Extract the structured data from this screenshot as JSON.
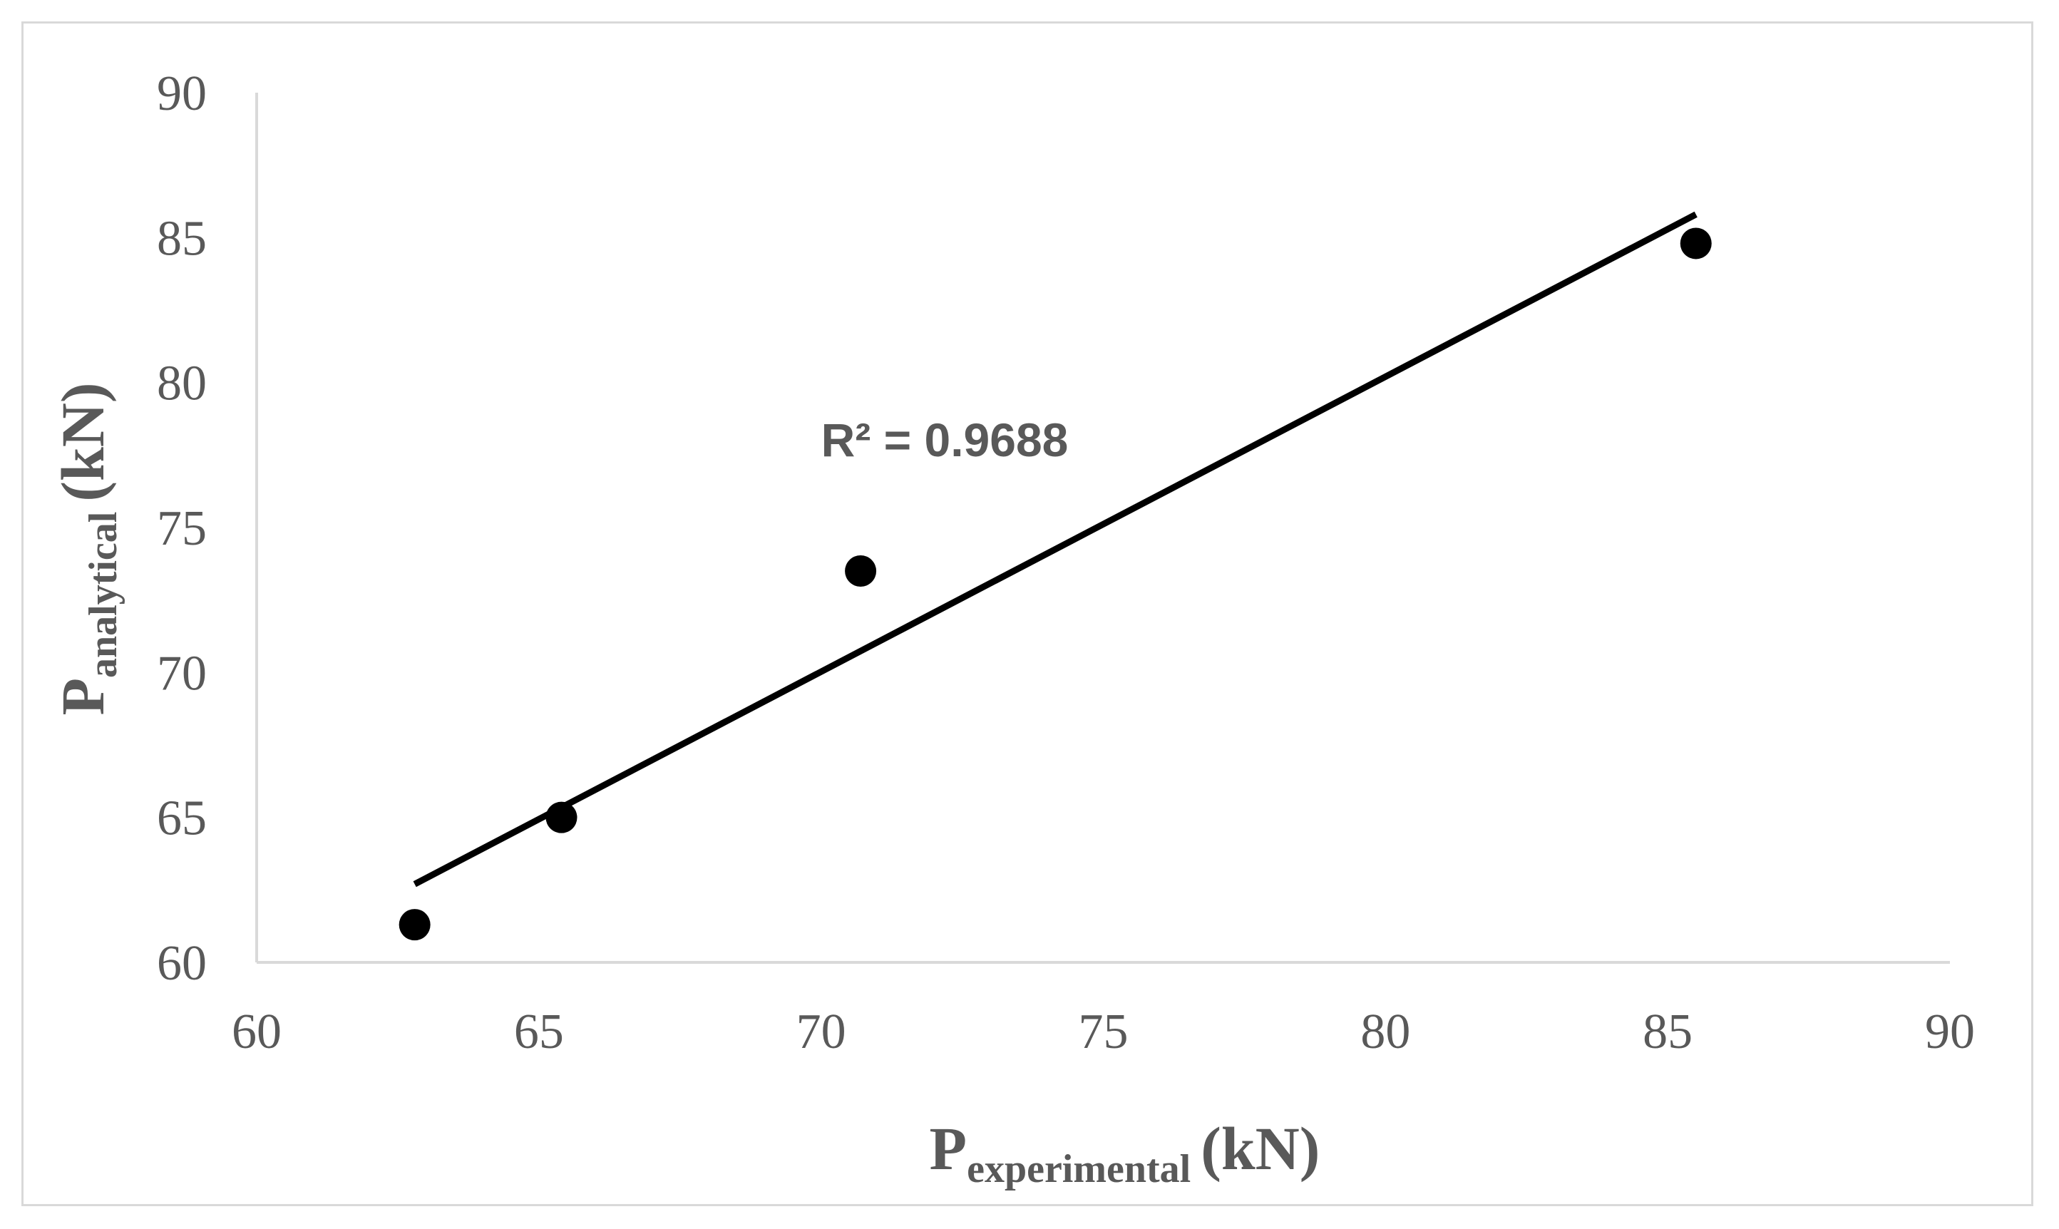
{
  "chart_data": {
    "type": "scatter",
    "x_axis": {
      "label_main": "P",
      "label_sub": "experimental",
      "label_unit": "(kN)",
      "range": [
        60,
        90
      ],
      "ticks": [
        "60",
        "65",
        "70",
        "75",
        "80",
        "85",
        "90"
      ]
    },
    "y_axis": {
      "label_main": "P",
      "label_sub": "analytical",
      "label_unit": "(kN)",
      "range": [
        60,
        90
      ],
      "ticks": [
        "60",
        "65",
        "70",
        "75",
        "80",
        "85",
        "90"
      ]
    },
    "series": [
      {
        "points": [
          {
            "x": 62.8,
            "y": 61.3
          },
          {
            "x": 65.4,
            "y": 65.0
          },
          {
            "x": 70.7,
            "y": 73.5
          },
          {
            "x": 85.5,
            "y": 84.8
          }
        ]
      }
    ],
    "trendline": {
      "type": "linear",
      "x_range": [
        62.8,
        85.5
      ],
      "y_range": [
        62.7,
        85.8
      ],
      "color": "#000000"
    },
    "annotation": {
      "text": "R² = 0.9688",
      "x": 70.0,
      "y": 78.0
    },
    "grid": false,
    "legend": "none",
    "marker_color": "#000000",
    "axis_color": "#d9d9d9",
    "text_color": "#595959"
  }
}
